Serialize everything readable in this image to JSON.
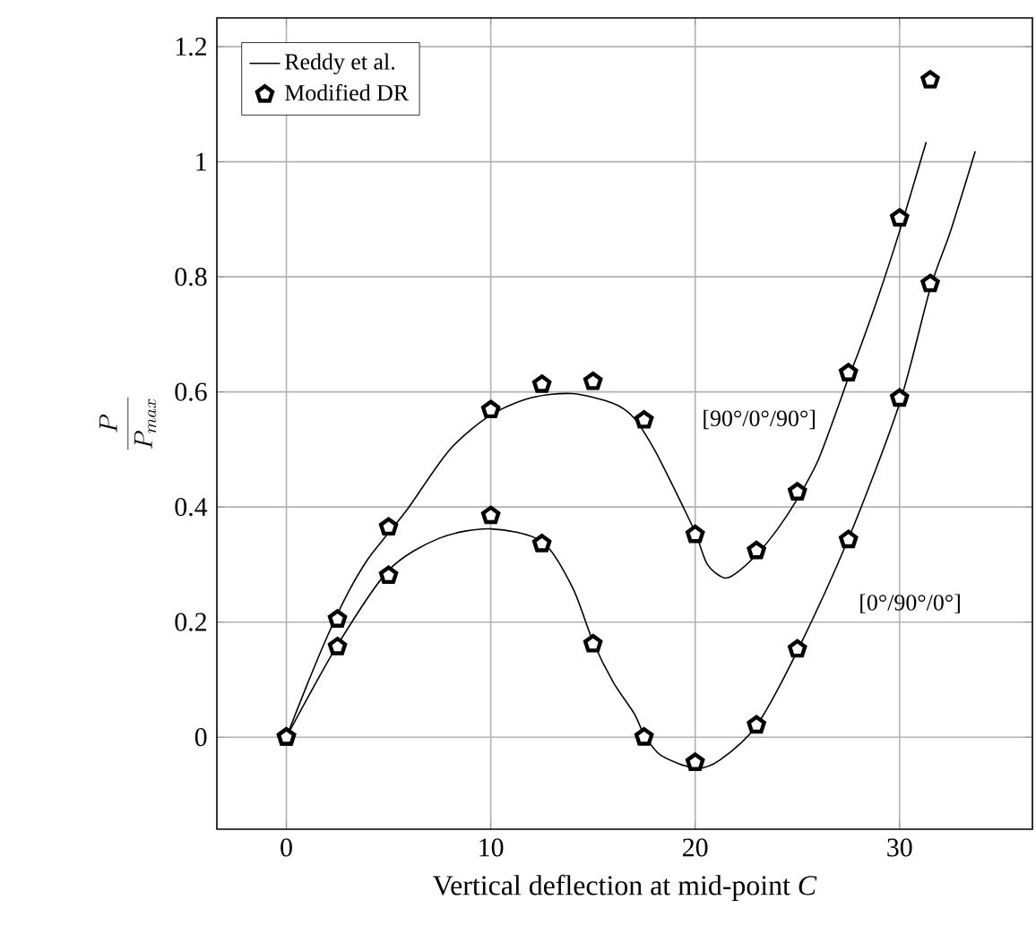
{
  "chart_data": {
    "type": "line",
    "xlabel": "Vertical deflection at mid-point *C*",
    "ylabel": "\\frac{P}{P_{max}}",
    "xlim": [
      -3.4,
      36.5
    ],
    "ylim": [
      -0.16,
      1.25
    ],
    "xticks": [
      0,
      10,
      20,
      30
    ],
    "yticks": [
      0,
      0.2,
      0.4,
      0.6,
      0.8,
      1,
      1.2
    ],
    "grid": true,
    "legend": "top left",
    "series": [
      {
        "name": "Reddy et al.",
        "color": "#000000",
        "line_style": "solid",
        "marker": "none",
        "x": [
          0,
          1,
          2,
          3,
          4,
          5,
          6,
          8,
          10,
          12,
          14,
          16,
          17,
          18,
          19,
          20,
          20.6,
          21.4,
          22,
          23,
          24,
          25,
          26,
          27,
          27.5,
          28,
          29,
          30,
          31.3
        ],
        "values": [
          0,
          0.09,
          0.175,
          0.25,
          0.31,
          0.355,
          0.4,
          0.5,
          0.56,
          0.59,
          0.597,
          0.58,
          0.555,
          0.5,
          0.43,
          0.356,
          0.3,
          0.277,
          0.285,
          0.317,
          0.36,
          0.414,
          0.48,
          0.575,
          0.625,
          0.67,
          0.77,
          0.879,
          1.034
        ]
      },
      {
        "color": "#000000",
        "line_style": "solid",
        "marker": "none",
        "x": [
          0,
          2.5,
          5,
          7.5,
          10,
          12.5,
          14,
          15,
          16,
          17,
          17.5,
          18.3,
          20,
          21.2,
          23,
          25,
          27.5,
          30,
          31.5,
          32.5,
          33.7
        ],
        "values": [
          0,
          0.16,
          0.29,
          0.346,
          0.362,
          0.34,
          0.26,
          0.166,
          0.095,
          0.042,
          0.005,
          -0.031,
          -0.054,
          -0.04,
          0.02,
          0.15,
          0.345,
          0.58,
          0.78,
          0.88,
          1.018
        ]
      },
      {
        "name": "Modified DR",
        "type": "scatter",
        "color": "#000000",
        "x": [
          0,
          2.5,
          5,
          10,
          12.5,
          15,
          17.5,
          20,
          23,
          25,
          27.5,
          30,
          31.5
        ],
        "values": [
          0,
          0.205,
          0.365,
          0.569,
          0.613,
          0.618,
          0.551,
          0.352,
          0.324,
          0.426,
          0.633,
          0.902,
          1.142
        ]
      },
      {
        "type": "scatter",
        "color": "#000000",
        "x": [
          0,
          2.5,
          5,
          10,
          12.5,
          15,
          17.5,
          20,
          23,
          25,
          27.5,
          30,
          31.5
        ],
        "values": [
          0,
          0.157,
          0.281,
          0.385,
          0.336,
          0.162,
          0,
          -0.044,
          0.021,
          0.153,
          0.343,
          0.589,
          0.788
        ]
      }
    ],
    "annotations": [
      "[90°/0°/90°]",
      "[0°/90°/0°]"
    ]
  }
}
